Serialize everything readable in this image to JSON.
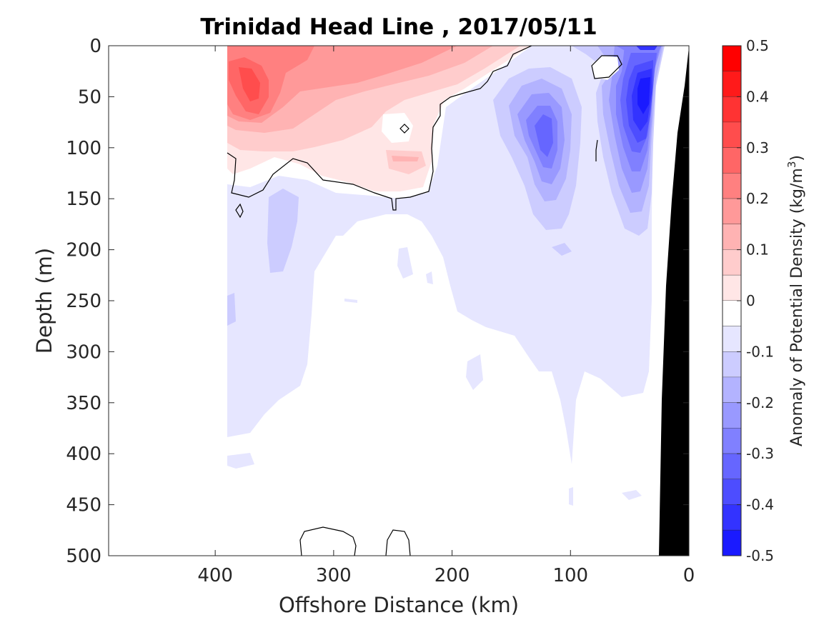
{
  "chart_data": {
    "type": "heatmap",
    "title": "Trinidad Head Line , 2017/05/11",
    "xlabel": "Offshore Distance (km)",
    "ylabel": "Depth (m)",
    "xlim": [
      490,
      0
    ],
    "ylim": [
      500,
      0
    ],
    "x_ticks": [
      "400",
      "300",
      "200",
      "100",
      "0"
    ],
    "x_tick_values": [
      400,
      300,
      200,
      100,
      0
    ],
    "y_ticks": [
      "0",
      "50",
      "100",
      "150",
      "200",
      "250",
      "300",
      "350",
      "400",
      "450",
      "500"
    ],
    "y_tick_values": [
      0,
      50,
      100,
      150,
      200,
      250,
      300,
      350,
      400,
      450,
      500
    ],
    "colorbar": {
      "label_main": "Anomaly of Potential Density (kg/m",
      "label_sup": "3",
      "label_end": ")",
      "range": [
        -0.5,
        0.5
      ],
      "tick_labels": [
        "0.5",
        "0.4",
        "0.3",
        "0.2",
        "0.1",
        "0",
        "-0.1",
        "-0.2",
        "-0.3",
        "-0.4",
        "-0.5"
      ],
      "tick_values": [
        0.5,
        0.4,
        0.3,
        0.2,
        0.1,
        0,
        -0.1,
        -0.2,
        -0.3,
        -0.4,
        -0.5
      ],
      "levels": [
        0.5,
        0.45,
        0.4,
        0.35,
        0.3,
        0.25,
        0.2,
        0.15,
        0.1,
        0.05,
        0,
        -0.05,
        -0.1,
        -0.15,
        -0.2,
        -0.25,
        -0.3,
        -0.35,
        -0.4,
        -0.45,
        -0.5
      ],
      "colors": [
        "#ff0000",
        "#ff1a1a",
        "#ff3333",
        "#ff4d4d",
        "#ff6666",
        "#ff8080",
        "#ff9999",
        "#ffb3b3",
        "#ffcccc",
        "#ffe6e6",
        "#ffffff",
        "#ffffff",
        "#e6e6ff",
        "#ccccff",
        "#b3b3ff",
        "#9999ff",
        "#8080ff",
        "#6666ff",
        "#4d4dff",
        "#3333ff",
        "#1a1aff",
        "#0000ff"
      ]
    },
    "data_extent": {
      "x_max": 390,
      "x_min": 0
    },
    "features": [
      {
        "name": "near-surface positive anomaly (offshore)",
        "x_range": [
          390,
          160
        ],
        "depth_range": [
          0,
          140
        ],
        "peak_anomaly": 0.3,
        "peak_at": [
          370,
          50
        ]
      },
      {
        "name": "mid-shelf negative anomaly",
        "x_range": [
          160,
          80
        ],
        "depth_range": [
          20,
          280
        ],
        "peak_anomaly": -0.3,
        "peak_at": [
          118,
          80
        ]
      },
      {
        "name": "nearshore negative anomaly",
        "x_range": [
          75,
          25
        ],
        "depth_range": [
          0,
          330
        ],
        "peak_anomaly": -0.45,
        "peak_at": [
          37,
          60
        ]
      },
      {
        "name": "deep weak negative anomaly",
        "x_range": [
          390,
          20
        ],
        "depth_range": [
          140,
          410
        ],
        "peak_anomaly": -0.1
      }
    ],
    "zero_contour_depths": [
      {
        "x": 390,
        "depth": 105
      },
      {
        "x": 340,
        "depth": 148
      },
      {
        "x": 300,
        "depth": 140
      },
      {
        "x": 250,
        "depth": 152
      },
      {
        "x": 210,
        "depth": 140
      },
      {
        "x": 200,
        "depth": 50
      },
      {
        "x": 170,
        "depth": 40
      },
      {
        "x": 130,
        "depth": 10
      }
    ],
    "bathymetry": [
      {
        "x": 0,
        "depth": 0
      },
      {
        "x": 10,
        "depth": 90
      },
      {
        "x": 25,
        "depth": 500
      },
      {
        "x": 0,
        "depth": 500
      }
    ],
    "grid": false,
    "legend": "colorbar-right"
  }
}
